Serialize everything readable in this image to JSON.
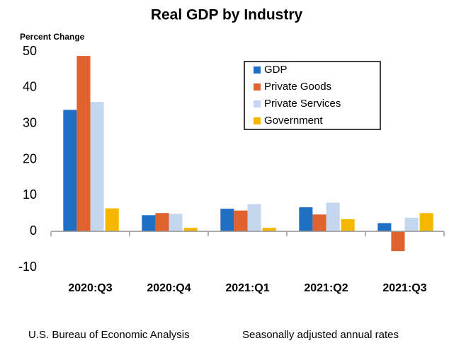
{
  "chart_data": {
    "type": "bar",
    "title": "Real GDP by Industry",
    "y_label": "Percent Change",
    "categories": [
      "2020:Q3",
      "2020:Q4",
      "2021:Q1",
      "2021:Q2",
      "2021:Q3"
    ],
    "series": [
      {
        "name": "GDP",
        "color": "#1f6fc5",
        "values": [
          33.8,
          4.5,
          6.3,
          6.7,
          2.3
        ]
      },
      {
        "name": "Private Goods",
        "color": "#e0622e",
        "values": [
          48.8,
          5.1,
          5.8,
          4.7,
          -5.5
        ]
      },
      {
        "name": "Private Services",
        "color": "#c5d7ef",
        "values": [
          36.0,
          4.9,
          7.6,
          8.0,
          3.8
        ]
      },
      {
        "name": "Government",
        "color": "#f5b800",
        "values": [
          6.4,
          1.0,
          1.0,
          3.4,
          5.1
        ]
      }
    ],
    "ylim": [
      -10,
      50
    ],
    "yticks": [
      -10,
      0,
      10,
      20,
      30,
      40,
      50
    ],
    "grid": false,
    "legend": "upper right",
    "source": "U.S. Bureau of Economic Analysis",
    "note": "Seasonally adjusted annual rates"
  }
}
